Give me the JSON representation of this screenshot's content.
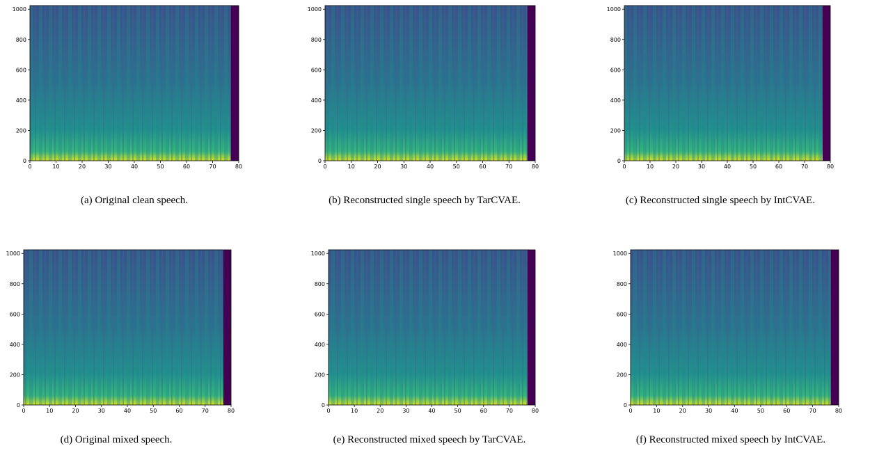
{
  "chart_data": [
    {
      "type": "heatmap",
      "caption": "(a) Original clean speech.",
      "xlim": [
        0,
        80
      ],
      "ylim": [
        0,
        1024
      ],
      "xticks": [
        0,
        10,
        20,
        30,
        40,
        50,
        60,
        70,
        80
      ],
      "yticks": [
        0,
        200,
        400,
        600,
        800,
        1000
      ]
    },
    {
      "type": "heatmap",
      "caption": "(b) Reconstructed single speech by TarCVAE.",
      "xlim": [
        0,
        80
      ],
      "ylim": [
        0,
        1024
      ],
      "xticks": [
        0,
        10,
        20,
        30,
        40,
        50,
        60,
        70,
        80
      ],
      "yticks": [
        0,
        200,
        400,
        600,
        800,
        1000
      ]
    },
    {
      "type": "heatmap",
      "caption": "(c) Reconstructed single speech by IntCVAE.",
      "xlim": [
        0,
        80
      ],
      "ylim": [
        0,
        1024
      ],
      "xticks": [
        0,
        10,
        20,
        30,
        40,
        50,
        60,
        70,
        80
      ],
      "yticks": [
        0,
        200,
        400,
        600,
        800,
        1000
      ]
    },
    {
      "type": "heatmap",
      "caption": "(d) Original mixed speech.",
      "xlim": [
        0,
        80
      ],
      "ylim": [
        0,
        1024
      ],
      "xticks": [
        0,
        10,
        20,
        30,
        40,
        50,
        60,
        70,
        80
      ],
      "yticks": [
        0,
        200,
        400,
        600,
        800,
        1000
      ]
    },
    {
      "type": "heatmap",
      "caption": "(e) Reconstructed mixed speech by TarCVAE.",
      "xlim": [
        0,
        80
      ],
      "ylim": [
        0,
        1024
      ],
      "xticks": [
        0,
        10,
        20,
        30,
        40,
        50,
        60,
        70,
        80
      ],
      "yticks": [
        0,
        200,
        400,
        600,
        800,
        1000
      ]
    },
    {
      "type": "heatmap",
      "caption": "(f) Reconstructed mixed speech by IntCVAE.",
      "xlim": [
        0,
        80
      ],
      "ylim": [
        0,
        1024
      ],
      "xticks": [
        0,
        10,
        20,
        30,
        40,
        50,
        60,
        70,
        80
      ],
      "yticks": [
        0,
        200,
        400,
        600,
        800,
        1000
      ]
    }
  ]
}
